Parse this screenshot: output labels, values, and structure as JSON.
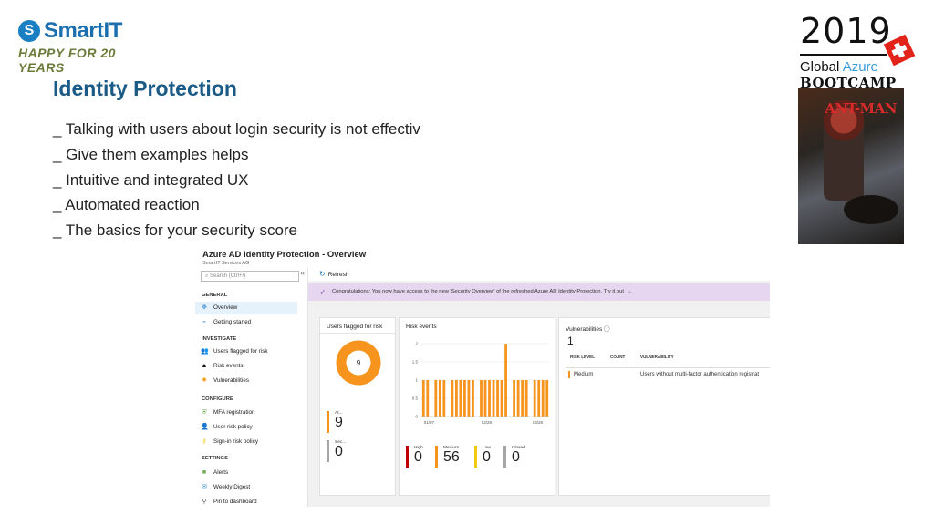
{
  "brand": {
    "name": "SmartIT",
    "mark": "S",
    "tagline": "HAPPY FOR 20 YEARS",
    "color": "#1b6fae"
  },
  "event": {
    "year": "2019",
    "line1_a": "Global ",
    "line1_b": "Azure",
    "line2": "BOOTCAMP",
    "poster_title": "ANT-MAN"
  },
  "slide": {
    "title": "Identity Protection",
    "bullets": [
      "_ Talking with users about login security is not effectiv",
      "_ Give them examples helps",
      "_ Intuitive and integrated UX",
      "_ Automated reaction",
      "_ The basics for your security score"
    ]
  },
  "portal": {
    "title": "Azure AD Identity Protection - Overview",
    "subtitle": "SmartIT Services AG",
    "search_placeholder": "Search (Ctrl+/)",
    "collapse_glyph": "«",
    "nav": {
      "general": "GENERAL",
      "overview": "Overview",
      "getting_started": "Getting started",
      "investigate": "INVESTIGATE",
      "users_flagged": "Users flagged for risk",
      "risk_events": "Risk events",
      "vulnerabilities": "Vulnerabilities",
      "configure": "CONFIGURE",
      "mfa_registration": "MFA registration",
      "user_risk_policy": "User risk policy",
      "signin_risk_policy": "Sign-in risk policy",
      "settings": "SETTINGS",
      "alerts": "Alerts",
      "weekly_digest": "Weekly Digest",
      "pin_dashboard": "Pin to dashboard"
    },
    "refresh": "Refresh",
    "banner": "Congratulations: You now have access to the new 'Security Overview' of the refreshed Azure AD Identity Protection. Try it out",
    "users_card": {
      "title": "Users flagged for risk",
      "donut_value": "9",
      "metrics": [
        {
          "label": "At...",
          "value": "9",
          "color": "#f7941d"
        },
        {
          "label": "Sec...",
          "value": "0",
          "color": "#a6a6a6"
        }
      ]
    },
    "events_card": {
      "title": "Risk events",
      "y_ticks": [
        "2",
        "1.5",
        "1",
        "0.5",
        "0"
      ],
      "x_ticks": [
        "01/07",
        "02/28",
        "03/28"
      ],
      "metrics": [
        {
          "label": "High",
          "value": "0",
          "color": "#c00000"
        },
        {
          "label": "Medium",
          "value": "56",
          "color": "#f7941d"
        },
        {
          "label": "Low",
          "value": "0",
          "color": "#f2c811"
        },
        {
          "label": "Closed",
          "value": "0",
          "color": "#a6a6a6"
        }
      ]
    },
    "vuln_card": {
      "title": "Vulnerabilities",
      "info_glyph": "ⓘ",
      "count": "1",
      "col_level": "RISK LEVEL",
      "col_count": "COUNT",
      "col_vuln": "VULNERABILITY",
      "row_level": "Medium",
      "row_vuln": "Users without multi-factor authentication registrat",
      "level_color": "#f7941d"
    }
  },
  "chart_data": {
    "type": "bar",
    "title": "Risk events",
    "ylim": [
      0,
      2
    ],
    "y_ticks": [
      0,
      0.5,
      1,
      1.5,
      2
    ],
    "x_ticks": [
      "01/07",
      "02/28",
      "03/28"
    ],
    "values": [
      1,
      1,
      0,
      1,
      1,
      1,
      0,
      1,
      1,
      1,
      1,
      1,
      1,
      0,
      1,
      1,
      1,
      1,
      1,
      1,
      2,
      0,
      1,
      1,
      1,
      1,
      0,
      1,
      1,
      1,
      1
    ],
    "bar_color": "#f7941d"
  }
}
